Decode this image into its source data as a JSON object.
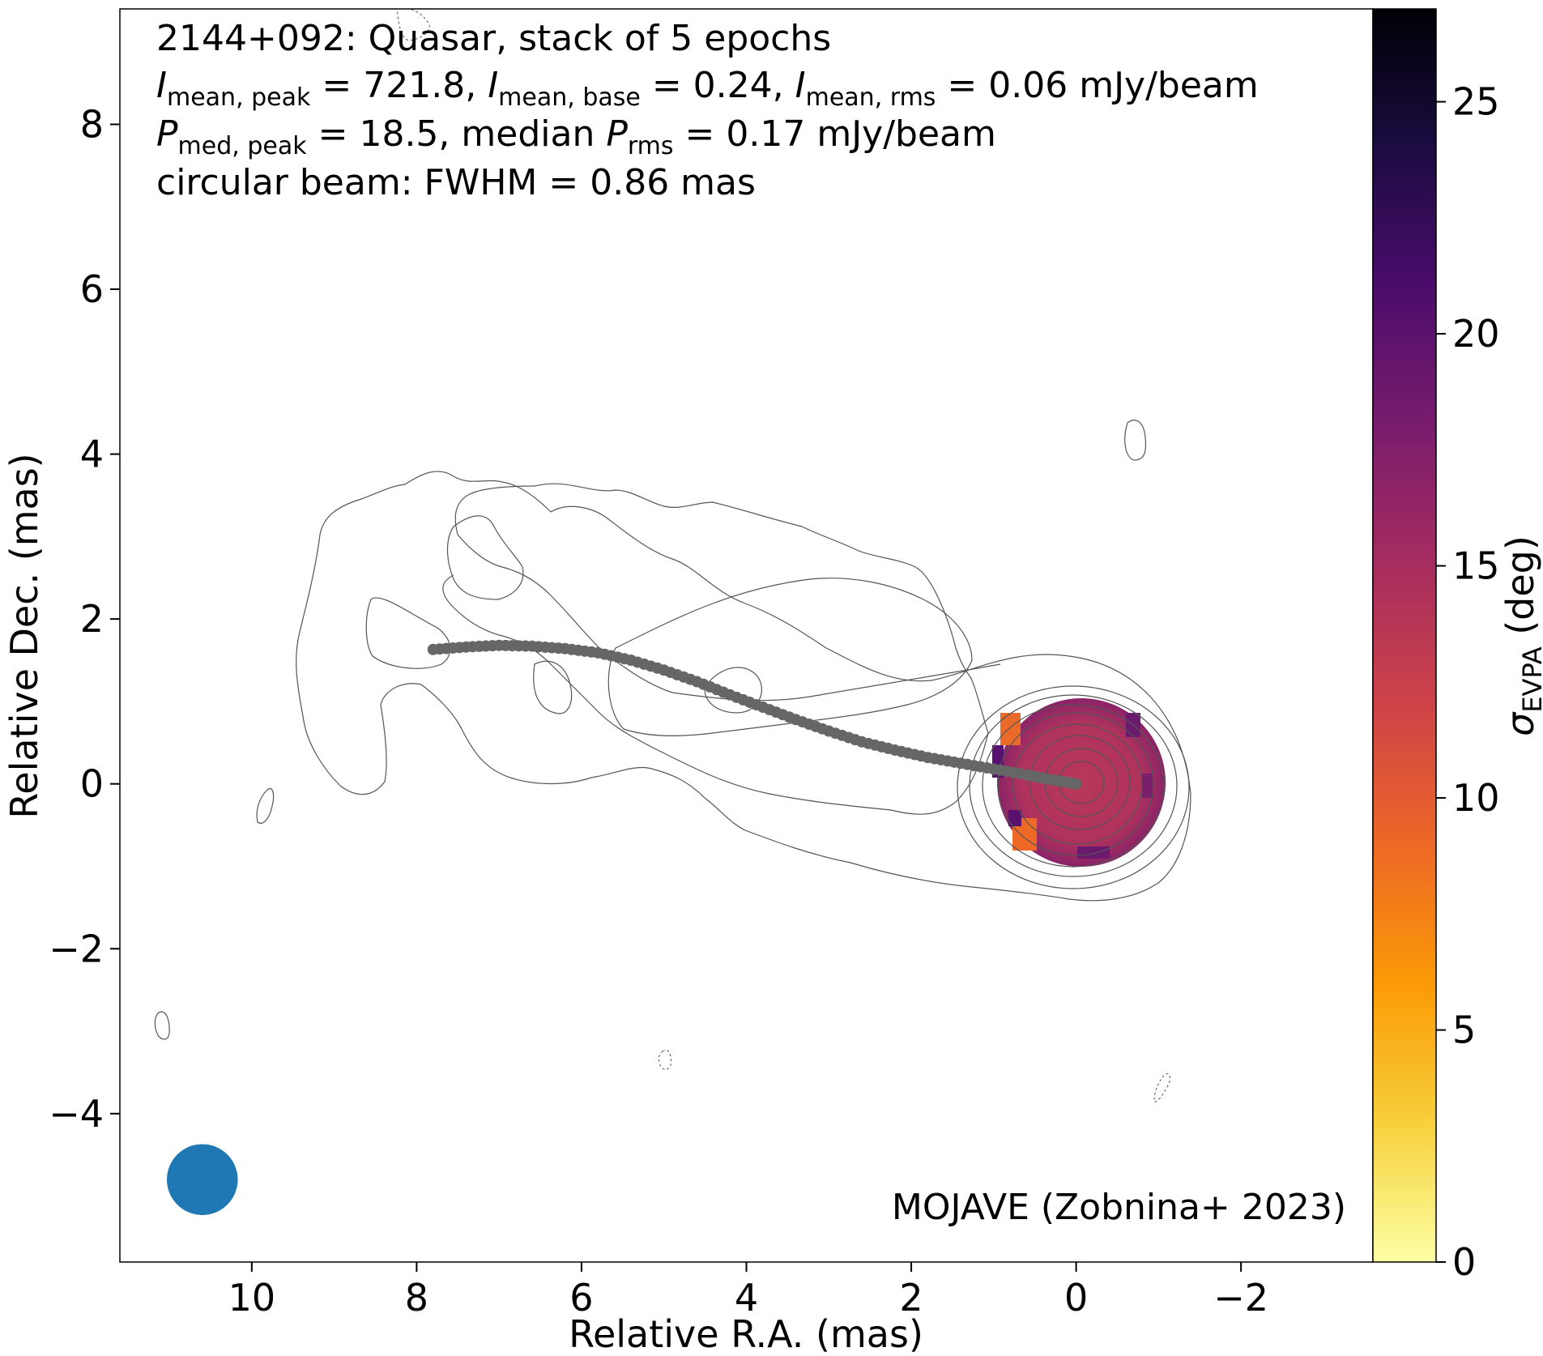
{
  "chart_data": {
    "type": "heatmap",
    "title_lines": [
      "2144+092: Quasar, stack of 5 epochs",
      "I_mean,peak = 721.8, I_mean,base = 0.24, I_mean,rms = 0.06 mJy/beam",
      "P_med,peak = 18.5, median P_rms = 0.17 mJy/beam",
      "circular beam: FWHM = 0.86 mas"
    ],
    "title": {
      "line1": "2144+092: Quasar, stack of 5 epochs",
      "I_sym": "I",
      "I_sub_peak": "mean, peak",
      "peak_val": " = 721.8, ",
      "I_sub_base": "mean, base",
      "base_val": " = 0.24, ",
      "I_sub_rms": "mean, rms",
      "rms_val": " = 0.06 mJy/beam",
      "P_sym": "P",
      "P_sub_peak": "med, peak",
      "P_peak_val": " = 18.5, median ",
      "P_sub_rms": "rms",
      "P_rms_val": " = 0.17 mJy/beam",
      "line4": "circular beam: FWHM = 0.86 mas"
    },
    "credit": "MOJAVE (Zobnina+ 2023)",
    "xlabel": "Relative R.A. (mas)",
    "ylabel": "Relative Dec. (mas)",
    "xlim": [
      11.6,
      -3.6
    ],
    "ylim": [
      -5.8,
      9.4
    ],
    "x_ticks": [
      10,
      8,
      6,
      4,
      2,
      0,
      -2
    ],
    "x_tick_labels": [
      "10",
      "8",
      "6",
      "4",
      "2",
      "0",
      "−2"
    ],
    "y_ticks": [
      8,
      6,
      4,
      2,
      0,
      -2,
      -4
    ],
    "y_tick_labels": [
      "8",
      "6",
      "4",
      "2",
      "0",
      "−2",
      "−4"
    ],
    "colorbar": {
      "label_symbol": "σ",
      "label_sub": "EVPA",
      "label_unit": " (deg)",
      "range": [
        0,
        27
      ],
      "ticks": [
        0,
        5,
        10,
        15,
        20,
        25
      ],
      "tick_labels": [
        "0",
        "5",
        "10",
        "15",
        "20",
        "25"
      ],
      "colormap": "inferno_r",
      "stops": [
        "#fcffa4",
        "#f7d13d",
        "#fb9b06",
        "#ed6925",
        "#cf4446",
        "#a52c60",
        "#781c6d",
        "#4a0c6b",
        "#1b0c41",
        "#000004"
      ]
    },
    "ridge_line": {
      "color": "#666666",
      "points": [
        [
          7.8,
          1.63
        ],
        [
          7.4,
          1.66
        ],
        [
          7.0,
          1.68
        ],
        [
          6.6,
          1.67
        ],
        [
          6.2,
          1.64
        ],
        [
          5.8,
          1.59
        ],
        [
          5.4,
          1.5
        ],
        [
          5.0,
          1.38
        ],
        [
          4.6,
          1.24
        ],
        [
          4.2,
          1.08
        ],
        [
          3.8,
          0.93
        ],
        [
          3.4,
          0.78
        ],
        [
          3.0,
          0.64
        ],
        [
          2.6,
          0.51
        ],
        [
          2.2,
          0.41
        ],
        [
          1.8,
          0.32
        ],
        [
          1.4,
          0.25
        ],
        [
          1.0,
          0.18
        ],
        [
          0.6,
          0.11
        ],
        [
          0.3,
          0.05
        ],
        [
          0.0,
          0.0
        ]
      ]
    },
    "core_sigma_evpa": {
      "center": [
        0.0,
        0.0
      ],
      "radius": 0.9,
      "typical_value_deg": 14,
      "edge_values_deg": [
        9,
        18,
        20,
        22
      ]
    },
    "contours": {
      "color": "#555555",
      "core_levels_radii": [
        [
          0.55,
          0.5
        ],
        [
          0.75,
          0.68
        ],
        [
          0.95,
          0.85
        ],
        [
          1.1,
          1.0
        ],
        [
          1.25,
          1.12
        ],
        [
          1.4,
          1.25
        ]
      ]
    },
    "beam": {
      "center": [
        10.6,
        -4.8
      ],
      "fwhm": 0.86,
      "color": "#1f77b4"
    }
  }
}
